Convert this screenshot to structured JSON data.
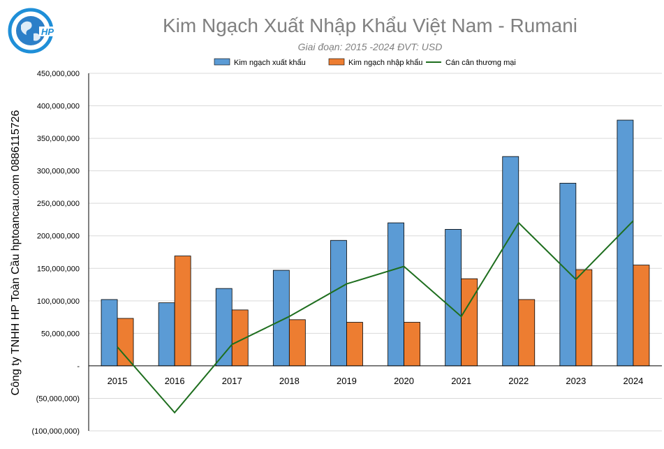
{
  "logo": {
    "text": "HP",
    "colors": {
      "ring": "#1f8fd8",
      "text": "#1f8fd8"
    }
  },
  "side_text": "Công ty TNHH HP Toàn Cầu hptoancau.com 0886115726",
  "colors": {
    "export": "#5b9bd5",
    "import": "#ed7d31",
    "balance": "#1e6e1e",
    "grid": "#d9d9d9",
    "axis": "#000000",
    "title": "#808080",
    "subtitle": "#808080"
  },
  "chart_data": {
    "type": "bar",
    "title": "Kim Ngạch Xuất Nhập Khẩu Việt Nam - Rumani",
    "subtitle": "Giai đoạn: 2015 -2024  ĐVT: USD",
    "categories": [
      "2015",
      "2016",
      "2017",
      "2018",
      "2019",
      "2020",
      "2021",
      "2022",
      "2023",
      "2024"
    ],
    "series": [
      {
        "name": "Kim ngạch xuất khẩu",
        "type": "bar",
        "values": [
          102000000,
          97000000,
          119000000,
          147000000,
          193000000,
          220000000,
          210000000,
          322000000,
          281000000,
          378000000
        ]
      },
      {
        "name": "Kim ngạch nhập khẩu",
        "type": "bar",
        "values": [
          73000000,
          169000000,
          86000000,
          71000000,
          67000000,
          67000000,
          134000000,
          102000000,
          148000000,
          155000000
        ]
      },
      {
        "name": "Cán cân thương mại",
        "type": "line",
        "values": [
          29000000,
          -72000000,
          33000000,
          76000000,
          126000000,
          153000000,
          76000000,
          220000000,
          133000000,
          223000000
        ]
      }
    ],
    "ylim": [
      -100000000,
      450000000
    ],
    "ytick_step": 50000000,
    "ytick_labels": [
      "(100,000,000)",
      "(50,000,000)",
      "-",
      "50,000,000",
      "100,000,000",
      "150,000,000",
      "200,000,000",
      "250,000,000",
      "300,000,000",
      "350,000,000",
      "400,000,000",
      "450,000,000"
    ],
    "xlabel": "",
    "ylabel": "",
    "grid": true,
    "legend_position": "top"
  }
}
